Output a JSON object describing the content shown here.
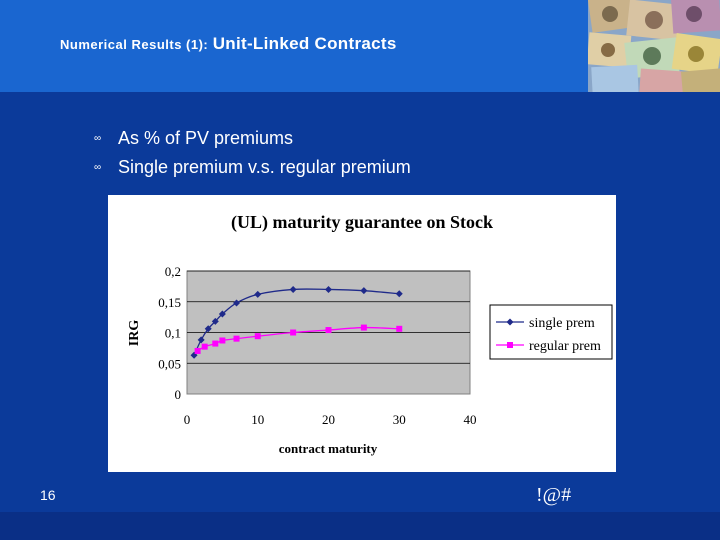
{
  "header": {
    "title_prefix": "Numerical Results (1):",
    "title_main": "Unit-Linked Contracts"
  },
  "bullets": [
    "As % of PV premiums",
    "Single premium v.s. regular premium"
  ],
  "footer": {
    "page_number": "16",
    "logo_text": "!@#"
  },
  "chart_data": {
    "type": "line",
    "title": "(UL) maturity guarantee on Stock",
    "xlabel": "contract maturity",
    "ylabel": "IRG",
    "xlim": [
      0,
      40
    ],
    "ylim": [
      0,
      0.2
    ],
    "x_ticks": [
      "0",
      "10",
      "20",
      "30",
      "40"
    ],
    "y_ticks": [
      "0",
      "0,05",
      "0,1",
      "0,15",
      "0,2"
    ],
    "grid": true,
    "legend_position": "right",
    "series": [
      {
        "name": "single prem",
        "color": "#1f2a8a",
        "marker": "diamond",
        "x": [
          1,
          2,
          3,
          4,
          5,
          7,
          10,
          15,
          20,
          25,
          30
        ],
        "y": [
          0.063,
          0.088,
          0.106,
          0.118,
          0.13,
          0.148,
          0.162,
          0.17,
          0.17,
          0.168,
          0.163
        ]
      },
      {
        "name": "regular prem",
        "color": "#ff00ff",
        "marker": "square",
        "x": [
          1.5,
          2.5,
          4,
          5,
          7,
          10,
          15,
          20,
          25,
          30
        ],
        "y": [
          0.07,
          0.077,
          0.082,
          0.087,
          0.09,
          0.094,
          0.1,
          0.104,
          0.108,
          0.106
        ]
      }
    ]
  }
}
